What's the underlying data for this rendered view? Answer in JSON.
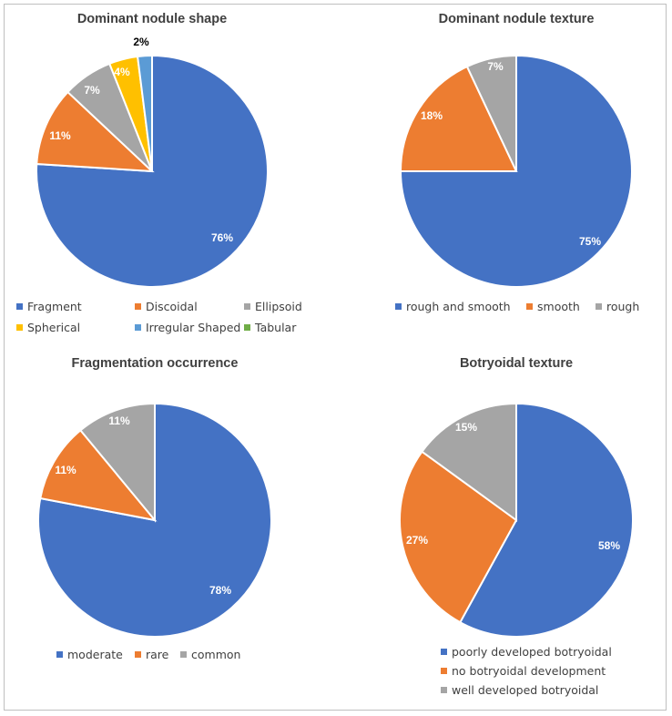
{
  "chart_data": [
    {
      "type": "pie",
      "title": "Dominant nodule shape",
      "categories": [
        "Fragment",
        "Discoidal",
        "Ellipsoid",
        "Spherical",
        "Irregular Shaped",
        "Tabular"
      ],
      "values": [
        76,
        11,
        7,
        4,
        2,
        0
      ],
      "labels": [
        "76%",
        "11%",
        "7%",
        "4%",
        "2%",
        ""
      ],
      "colors": [
        "#4472C4",
        "#ED7D31",
        "#A5A5A5",
        "#FFC000",
        "#5B9BD5",
        "#70AD47"
      ],
      "legend_position": "bottom"
    },
    {
      "type": "pie",
      "title": "Dominant nodule texture",
      "categories": [
        "rough and smooth",
        "smooth",
        "rough"
      ],
      "values": [
        75,
        18,
        7
      ],
      "labels": [
        "75%",
        "18%",
        "7%"
      ],
      "colors": [
        "#4472C4",
        "#ED7D31",
        "#A5A5A5"
      ],
      "legend_position": "bottom"
    },
    {
      "type": "pie",
      "title": "Fragmentation occurrence",
      "categories": [
        "moderate",
        "rare",
        "common"
      ],
      "values": [
        78,
        11,
        11
      ],
      "labels": [
        "78%",
        "11%",
        "11%"
      ],
      "colors": [
        "#4472C4",
        "#ED7D31",
        "#A5A5A5"
      ],
      "legend_position": "bottom"
    },
    {
      "type": "pie",
      "title": "Botryoidal texture",
      "categories": [
        "poorly developed botryoidal",
        "no botryoidal development",
        "well developed botryoidal"
      ],
      "values": [
        58,
        27,
        15
      ],
      "labels": [
        "58%",
        "27%",
        "15%"
      ],
      "colors": [
        "#4472C4",
        "#ED7D31",
        "#A5A5A5"
      ],
      "legend_position": "bottom"
    }
  ]
}
